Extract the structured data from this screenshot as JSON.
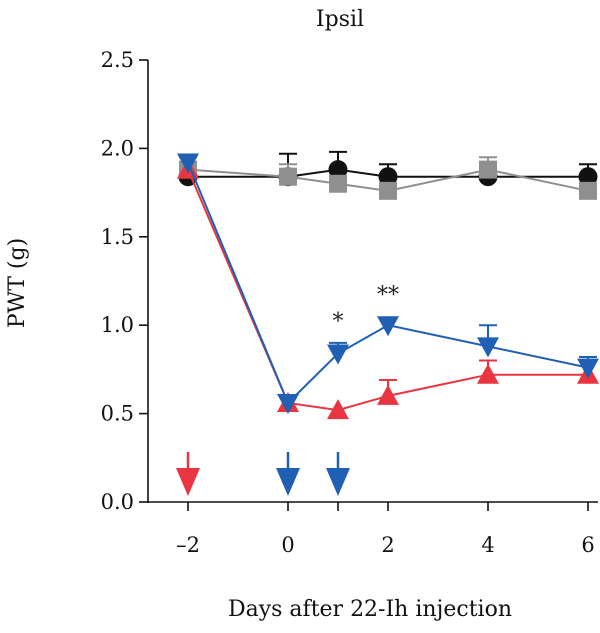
{
  "chart_data": {
    "type": "line",
    "title": "Ipsil",
    "xlabel": "Days after 22-Ih injection",
    "ylabel": "PWT (g)",
    "xlim": [
      -2.8,
      6.2
    ],
    "ylim": [
      0,
      2.5
    ],
    "xticks": [
      "-2",
      "0",
      "1",
      "2",
      "4",
      "6"
    ],
    "xtick_values": [
      -2,
      0,
      1,
      2,
      4,
      6
    ],
    "xtick_labels": [
      "–2",
      "0",
      "2",
      "4",
      "6"
    ],
    "xtick_label_values": [
      -2,
      0,
      2,
      4,
      6
    ],
    "yticks": [
      0.0,
      0.5,
      1.0,
      1.5,
      2.0,
      2.5
    ],
    "ytick_labels": [
      "0.0",
      "0.5",
      "1.0",
      "1.5",
      "2.0",
      "2.5"
    ],
    "grid": false,
    "series": [
      {
        "color": "#111111",
        "marker": "circle",
        "x": [
          -2,
          0,
          1,
          2,
          4,
          6
        ],
        "y": [
          1.84,
          1.84,
          1.88,
          1.84,
          1.84,
          1.84
        ],
        "err": [
          0.0,
          0.13,
          0.1,
          0.07,
          0.0,
          0.07
        ]
      },
      {
        "color": "#8f8f8f",
        "marker": "square",
        "x": [
          -2,
          0,
          1,
          2,
          4,
          6
        ],
        "y": [
          1.88,
          1.84,
          1.8,
          1.76,
          1.88,
          1.76
        ],
        "err": [
          0.07,
          0.07,
          0.0,
          0.0,
          0.07,
          0.0
        ]
      },
      {
        "color": "#e8353f",
        "marker": "triangle-up",
        "x": [
          -2,
          0,
          1,
          2,
          4,
          6
        ],
        "y": [
          1.88,
          0.56,
          0.52,
          0.6,
          0.72,
          0.72
        ],
        "err": [
          0.08,
          0.0,
          0.0,
          0.09,
          0.08,
          0.0
        ]
      },
      {
        "color": "#1f5fb4",
        "marker": "triangle-down",
        "x": [
          -2,
          0,
          1,
          2,
          4,
          6
        ],
        "y": [
          1.92,
          0.56,
          0.84,
          1.0,
          0.88,
          0.76
        ],
        "err": [
          0.0,
          0.0,
          0.06,
          0.0,
          0.12,
          0.06
        ]
      }
    ],
    "annotations": [
      {
        "text": "*",
        "x": 1,
        "y": 0.98
      },
      {
        "text": "**",
        "x": 2,
        "y": 1.13
      }
    ],
    "injection_arrows": [
      {
        "color": "#e8353f",
        "x": -2
      },
      {
        "color": "#1f5fb4",
        "x": 0
      },
      {
        "color": "#1f5fb4",
        "x": 1
      }
    ]
  }
}
